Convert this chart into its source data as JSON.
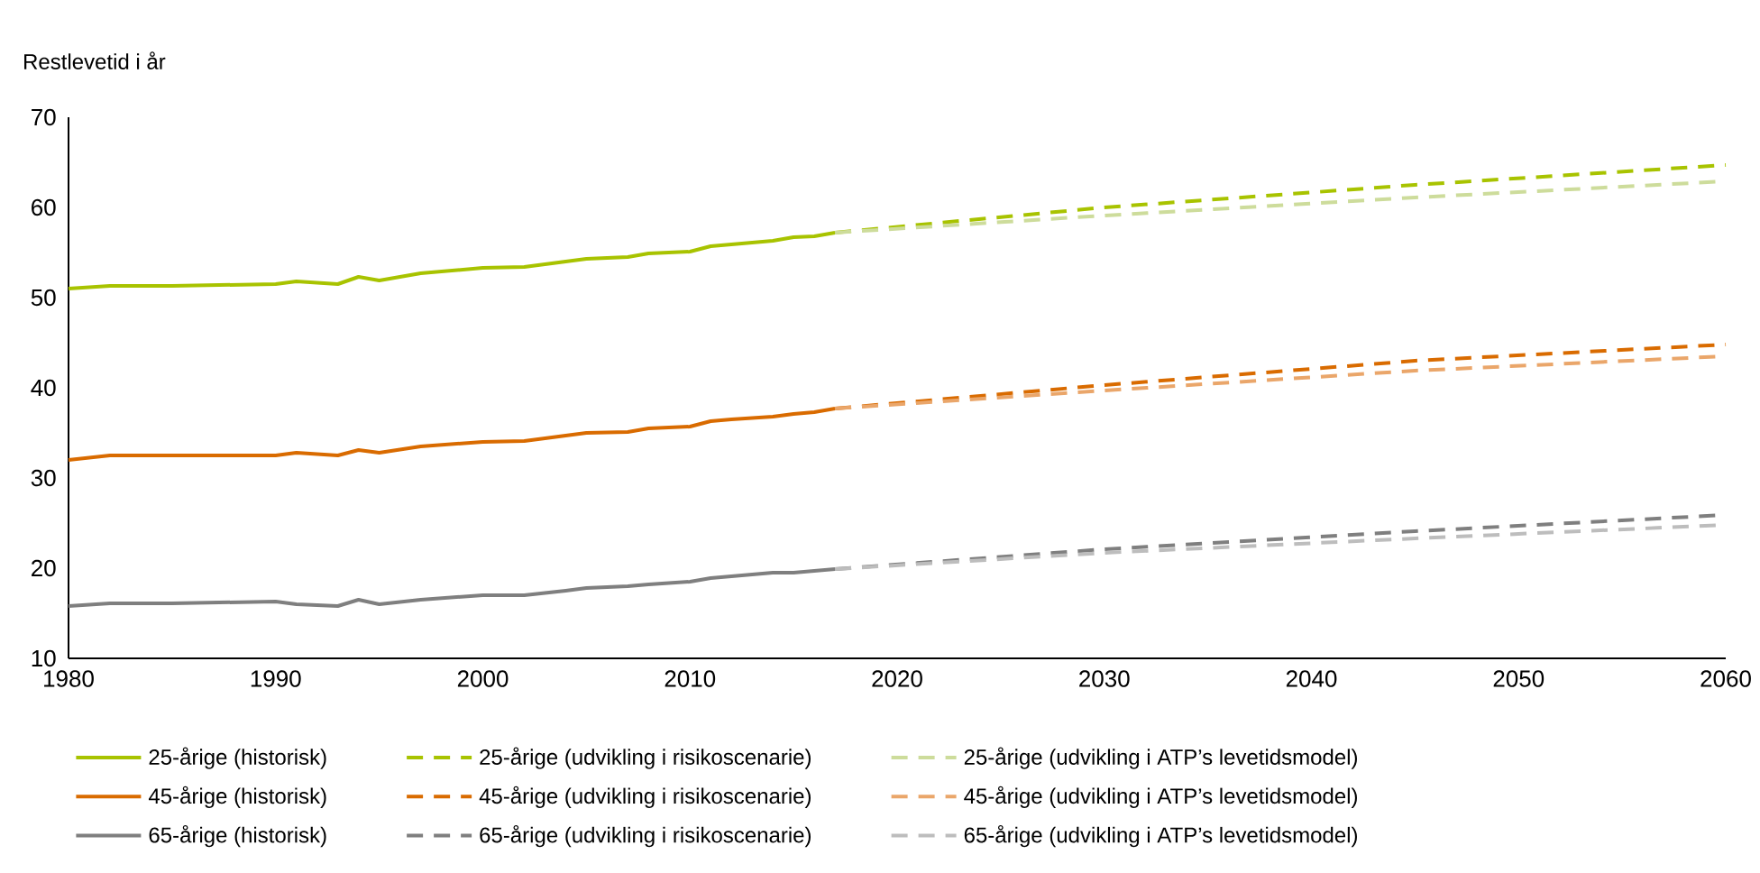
{
  "chart_data": {
    "type": "line",
    "ylabel": "Restlevetid i år",
    "xlim": [
      1980,
      2060
    ],
    "ylim": [
      10,
      70
    ],
    "xticks": [
      1980,
      1990,
      2000,
      2010,
      2020,
      2030,
      2040,
      2050,
      2060
    ],
    "yticks": [
      10,
      20,
      30,
      40,
      50,
      60,
      70
    ],
    "legend": "bottom",
    "grid": false,
    "marker": "none",
    "series": [
      {
        "name": "25-årige (historisk)",
        "color": "#a8c300",
        "line_style": "solid",
        "x": [
          1980,
          1982,
          1985,
          1990,
          1991,
          1993,
          1994,
          1995,
          1997,
          2000,
          2002,
          2004,
          2005,
          2007,
          2008,
          2010,
          2011,
          2012,
          2014,
          2015,
          2016,
          2017
        ],
        "values": [
          51.0,
          51.3,
          51.3,
          51.5,
          51.8,
          51.5,
          52.3,
          51.9,
          52.7,
          53.3,
          53.4,
          54.0,
          54.3,
          54.5,
          54.9,
          55.1,
          55.7,
          55.9,
          56.3,
          56.7,
          56.8,
          57.2
        ]
      },
      {
        "name": "25-årige (udvikling i risikoscenarie)",
        "color": "#a8c300",
        "line_style": "dashed",
        "x": [
          2017,
          2030,
          2045,
          2060
        ],
        "values": [
          57.2,
          60.0,
          62.5,
          64.7
        ]
      },
      {
        "name": "25-årige (udvikling i ATP’s levetidsmodel)",
        "color": "#cddc9b",
        "line_style": "dashed",
        "x": [
          2017,
          2030,
          2045,
          2060
        ],
        "values": [
          57.2,
          59.1,
          61.1,
          62.9
        ]
      },
      {
        "name": "45-årige (historisk)",
        "color": "#d96b00",
        "line_style": "solid",
        "x": [
          1980,
          1982,
          1985,
          1990,
          1991,
          1993,
          1994,
          1995,
          1997,
          2000,
          2002,
          2004,
          2005,
          2007,
          2008,
          2010,
          2011,
          2012,
          2014,
          2015,
          2016,
          2017
        ],
        "values": [
          32.0,
          32.5,
          32.5,
          32.5,
          32.8,
          32.5,
          33.1,
          32.8,
          33.5,
          34.0,
          34.1,
          34.7,
          35.0,
          35.1,
          35.5,
          35.7,
          36.3,
          36.5,
          36.8,
          37.1,
          37.3,
          37.7
        ]
      },
      {
        "name": "45-årige (udvikling i risikoscenarie)",
        "color": "#d96b00",
        "line_style": "dashed",
        "x": [
          2017,
          2030,
          2045,
          2060
        ],
        "values": [
          37.7,
          40.3,
          43.0,
          44.8
        ]
      },
      {
        "name": "45-årige (udvikling i ATP’s levetidsmodel)",
        "color": "#eaa66a",
        "line_style": "dashed",
        "x": [
          2017,
          2030,
          2045,
          2060
        ],
        "values": [
          37.7,
          39.7,
          41.9,
          43.5
        ]
      },
      {
        "name": "65-årige (historisk)",
        "color": "#7f7f7f",
        "line_style": "solid",
        "x": [
          1980,
          1982,
          1985,
          1990,
          1991,
          1993,
          1994,
          1995,
          1997,
          2000,
          2002,
          2004,
          2005,
          2007,
          2008,
          2010,
          2011,
          2012,
          2014,
          2015,
          2016,
          2017
        ],
        "values": [
          15.8,
          16.1,
          16.1,
          16.3,
          16.0,
          15.8,
          16.5,
          16.0,
          16.5,
          17.0,
          17.0,
          17.5,
          17.8,
          18.0,
          18.2,
          18.5,
          18.9,
          19.1,
          19.5,
          19.5,
          19.7,
          19.9
        ]
      },
      {
        "name": "65-årige (udvikling i risikoscenarie)",
        "color": "#7f7f7f",
        "line_style": "dashed",
        "x": [
          2017,
          2030,
          2045,
          2060
        ],
        "values": [
          19.9,
          22.1,
          24.1,
          25.9
        ]
      },
      {
        "name": "65-årige (udvikling i ATP’s levetidsmodel)",
        "color": "#bdbdbd",
        "line_style": "dashed",
        "x": [
          2017,
          2030,
          2045,
          2060
        ],
        "values": [
          19.9,
          21.7,
          23.3,
          24.8
        ]
      }
    ]
  }
}
